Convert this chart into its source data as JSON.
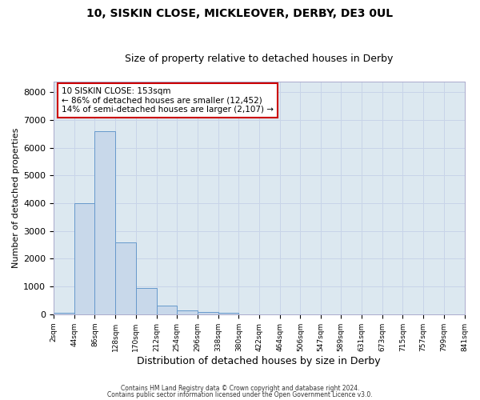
{
  "title1": "10, SISKIN CLOSE, MICKLEOVER, DERBY, DE3 0UL",
  "title2": "Size of property relative to detached houses in Derby",
  "xlabel": "Distribution of detached houses by size in Derby",
  "ylabel": "Number of detached properties",
  "annotation_line1": "10 SISKIN CLOSE: 153sqm",
  "annotation_line2": "← 86% of detached houses are smaller (12,452)",
  "annotation_line3": "14% of semi-detached houses are larger (2,107) →",
  "bar_edges": [
    2,
    44,
    86,
    128,
    170,
    212,
    254,
    296,
    338,
    380,
    422,
    464,
    506,
    547,
    589,
    631,
    673,
    715,
    757,
    799,
    841
  ],
  "bar_heights": [
    50,
    4000,
    6600,
    2600,
    950,
    320,
    130,
    80,
    50,
    0,
    0,
    0,
    0,
    0,
    0,
    0,
    0,
    0,
    0,
    0
  ],
  "bar_color": "#c8d8ea",
  "bar_edge_color": "#6699cc",
  "ylim": [
    0,
    8400
  ],
  "yticks": [
    0,
    1000,
    2000,
    3000,
    4000,
    5000,
    6000,
    7000,
    8000
  ],
  "xlabel_list": [
    "2sqm",
    "44sqm",
    "86sqm",
    "128sqm",
    "170sqm",
    "212sqm",
    "254sqm",
    "296sqm",
    "338sqm",
    "380sqm",
    "422sqm",
    "464sqm",
    "506sqm",
    "547sqm",
    "589sqm",
    "631sqm",
    "673sqm",
    "715sqm",
    "757sqm",
    "799sqm",
    "841sqm"
  ],
  "x_tick_positions": [
    2,
    44,
    86,
    128,
    170,
    212,
    254,
    296,
    338,
    380,
    422,
    464,
    506,
    547,
    589,
    631,
    673,
    715,
    757,
    799,
    841
  ],
  "grid_color": "#c8d4e8",
  "fig_background_color": "#ffffff",
  "plot_bg_color": "#dce8f0",
  "footer1": "Contains HM Land Registry data © Crown copyright and database right 2024.",
  "footer2": "Contains public sector information licensed under the Open Government Licence v3.0.",
  "annotation_box_color": "#ffffff",
  "annotation_border_color": "#cc0000",
  "title1_fontsize": 10,
  "title2_fontsize": 9,
  "ylabel_fontsize": 8,
  "xlabel_fontsize": 9
}
